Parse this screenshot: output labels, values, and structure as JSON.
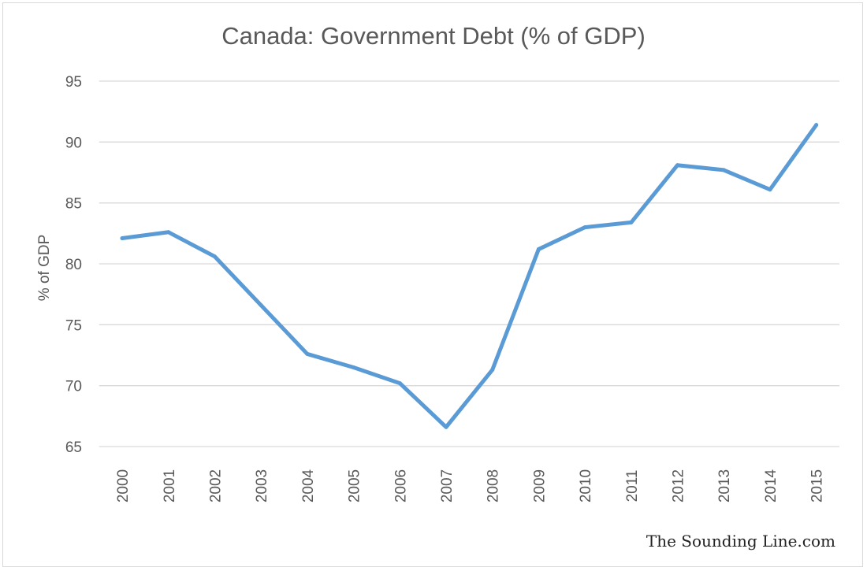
{
  "chart_data": {
    "type": "line",
    "title": "Canada: Government Debt (% of GDP)",
    "xlabel": "",
    "ylabel": "% of GDP",
    "ylim": [
      65,
      95
    ],
    "yticks": [
      65,
      70,
      75,
      80,
      85,
      90,
      95
    ],
    "grid": true,
    "categories": [
      "2000",
      "2001",
      "2002",
      "2003",
      "2004",
      "2005",
      "2006",
      "2007",
      "2008",
      "2009",
      "2010",
      "2011",
      "2012",
      "2013",
      "2014",
      "2015"
    ],
    "series": [
      {
        "values": [
          82.1,
          82.6,
          80.6,
          76.6,
          72.6,
          71.5,
          70.2,
          66.6,
          71.3,
          81.2,
          83.0,
          83.4,
          88.1,
          87.7,
          86.1,
          91.4
        ],
        "color": "#5b9bd5"
      }
    ]
  },
  "watermark": "The Sounding Line.com"
}
